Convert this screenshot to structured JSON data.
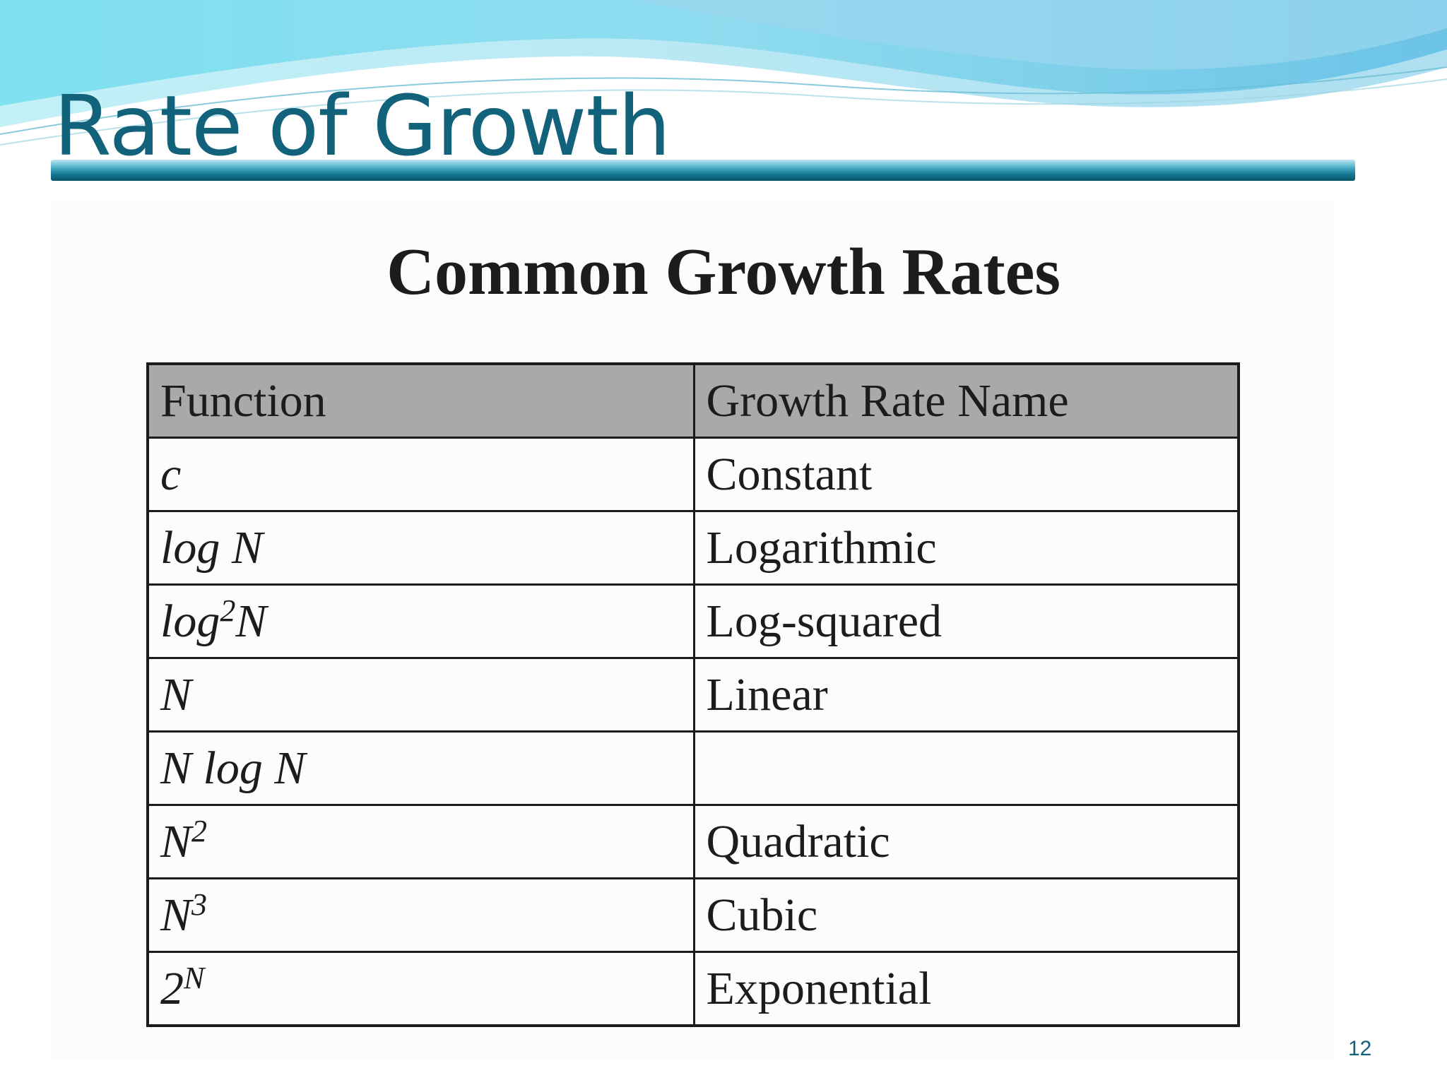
{
  "slide": {
    "title": "Rate of Growth",
    "page_number": "12",
    "accent_color": "#11627a"
  },
  "table": {
    "heading": "Common Growth Rates",
    "headers": [
      "Function",
      "Growth Rate Name"
    ],
    "rows": [
      {
        "function": "c",
        "name": "Constant"
      },
      {
        "function": "log N",
        "name": "Logarithmic"
      },
      {
        "function_base": "log",
        "function_exp": "2",
        "function_tail": "N",
        "name": "Log-squared"
      },
      {
        "function": "N",
        "name": "Linear"
      },
      {
        "function": "N log N",
        "name": ""
      },
      {
        "function_base": "N",
        "function_exp": "2",
        "name": "Quadratic"
      },
      {
        "function_base": "N",
        "function_exp": "3",
        "name": "Cubic"
      },
      {
        "function_base": "2",
        "function_exp": "N",
        "name": "Exponential"
      }
    ]
  }
}
